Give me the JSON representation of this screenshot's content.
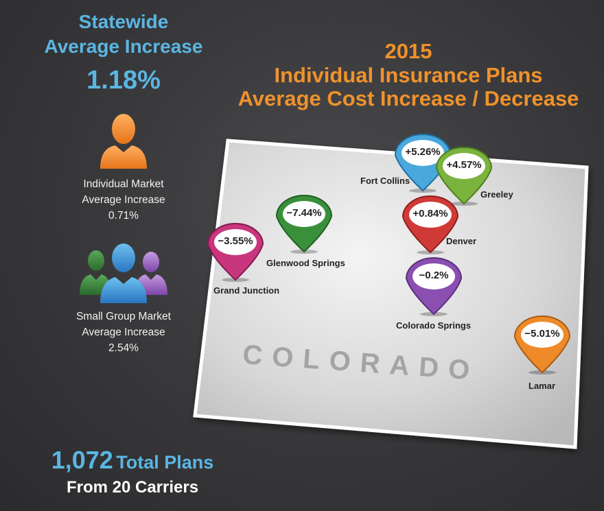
{
  "statewide": {
    "line1": "Statewide",
    "line2": "Average Increase",
    "value": "1.18%"
  },
  "title": {
    "year": "2015",
    "line1": "Individual Insurance Plans",
    "line2": "Average Cost Increase / Decrease"
  },
  "individual": {
    "line1": "Individual Market",
    "line2": "Average Increase",
    "value": "0.71%"
  },
  "small_group": {
    "line1": "Small Group Market",
    "line2": "Average Increase",
    "value": "2.54%"
  },
  "totals": {
    "count": "1,072",
    "count_label": "Total Plans",
    "carriers": "From 20 Carriers"
  },
  "map": {
    "state_name": "COLORADO",
    "cities": [
      {
        "name": "Fort Collins",
        "change": "+5.26%",
        "color": "#4aa8dc"
      },
      {
        "name": "Greeley",
        "change": "+4.57%",
        "color": "#7ab33e"
      },
      {
        "name": "Denver",
        "change": "+0.84%",
        "color": "#d03a36"
      },
      {
        "name": "Glenwood Springs",
        "change": "−7.44%",
        "color": "#3a8f3a"
      },
      {
        "name": "Grand Junction",
        "change": "−3.55%",
        "color": "#c8367e"
      },
      {
        "name": "Colorado Springs",
        "change": "−0.2%",
        "color": "#8a4fb0"
      },
      {
        "name": "Lamar",
        "change": "−5.01%",
        "color": "#ee8a2a"
      }
    ]
  },
  "colors": {
    "blue_heading": "#5bb6e3",
    "orange_heading": "#f0922b",
    "individual_icon": "#f08a24",
    "group_icon_center": "#3a8fd0",
    "group_icon_left": "#3a8a3c",
    "group_icon_right": "#9a5cc0"
  }
}
